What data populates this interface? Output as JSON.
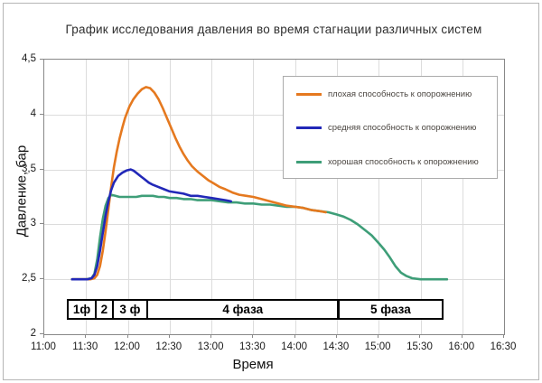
{
  "title": "График исследования давления во время стагнации различных систем",
  "chart_data": {
    "type": "line",
    "title": "График исследования давления во время стагнации различных систем",
    "xlabel": "Время",
    "ylabel": "Давление, бар",
    "grid": true,
    "legend_position": "upper right",
    "xlim_minutes_from_11_00": [
      0,
      330
    ],
    "ylim": [
      2,
      4.5
    ],
    "x_ticks": [
      {
        "t": 0,
        "label": "11:00"
      },
      {
        "t": 30,
        "label": "11:30"
      },
      {
        "t": 60,
        "label": "12:00"
      },
      {
        "t": 90,
        "label": "12:30"
      },
      {
        "t": 120,
        "label": "13:00"
      },
      {
        "t": 150,
        "label": "13:30"
      },
      {
        "t": 180,
        "label": "14:00"
      },
      {
        "t": 210,
        "label": "14:30"
      },
      {
        "t": 240,
        "label": "15:00"
      },
      {
        "t": 270,
        "label": "15:30"
      },
      {
        "t": 300,
        "label": "16:00"
      },
      {
        "t": 330,
        "label": "16:30"
      }
    ],
    "y_ticks": [
      {
        "v": 2,
        "label": "2"
      },
      {
        "v": 2.5,
        "label": "2,5"
      },
      {
        "v": 3,
        "label": "3"
      },
      {
        "v": 3.5,
        "label": "3,5"
      },
      {
        "v": 4,
        "label": "4"
      },
      {
        "v": 4.5,
        "label": "4,5"
      }
    ],
    "series": [
      {
        "key": "poor",
        "name": "плохая способность к опорожнению",
        "color": "#E5791F",
        "points": [
          [
            20,
            2.5
          ],
          [
            33,
            2.5
          ],
          [
            36,
            2.51
          ],
          [
            38,
            2.54
          ],
          [
            40,
            2.62
          ],
          [
            42,
            2.76
          ],
          [
            44,
            2.94
          ],
          [
            46,
            3.14
          ],
          [
            48,
            3.34
          ],
          [
            50,
            3.52
          ],
          [
            52,
            3.66
          ],
          [
            54,
            3.78
          ],
          [
            56,
            3.88
          ],
          [
            58,
            3.97
          ],
          [
            61,
            4.07
          ],
          [
            64,
            4.14
          ],
          [
            67,
            4.19
          ],
          [
            70,
            4.23
          ],
          [
            73,
            4.25
          ],
          [
            76,
            4.24
          ],
          [
            79,
            4.2
          ],
          [
            82,
            4.14
          ],
          [
            85,
            4.06
          ],
          [
            88,
            3.97
          ],
          [
            91,
            3.88
          ],
          [
            94,
            3.79
          ],
          [
            97,
            3.71
          ],
          [
            100,
            3.64
          ],
          [
            103,
            3.58
          ],
          [
            106,
            3.53
          ],
          [
            110,
            3.48
          ],
          [
            114,
            3.44
          ],
          [
            118,
            3.4
          ],
          [
            122,
            3.37
          ],
          [
            126,
            3.34
          ],
          [
            130,
            3.32
          ],
          [
            135,
            3.29
          ],
          [
            140,
            3.27
          ],
          [
            145,
            3.26
          ],
          [
            150,
            3.25
          ],
          [
            156,
            3.23
          ],
          [
            162,
            3.21
          ],
          [
            168,
            3.19
          ],
          [
            174,
            3.17
          ],
          [
            180,
            3.16
          ],
          [
            186,
            3.15
          ],
          [
            192,
            3.13
          ],
          [
            198,
            3.12
          ],
          [
            202,
            3.11
          ]
        ]
      },
      {
        "key": "medium",
        "name": "средняя способность к опорожнению",
        "color": "#2228B8",
        "points": [
          [
            20,
            2.5
          ],
          [
            31,
            2.5
          ],
          [
            34,
            2.51
          ],
          [
            36,
            2.54
          ],
          [
            38,
            2.62
          ],
          [
            40,
            2.76
          ],
          [
            42,
            2.92
          ],
          [
            44,
            3.08
          ],
          [
            46,
            3.21
          ],
          [
            48,
            3.31
          ],
          [
            50,
            3.38
          ],
          [
            53,
            3.44
          ],
          [
            56,
            3.47
          ],
          [
            59,
            3.49
          ],
          [
            62,
            3.5
          ],
          [
            64,
            3.49
          ],
          [
            66,
            3.47
          ],
          [
            69,
            3.44
          ],
          [
            72,
            3.41
          ],
          [
            75,
            3.38
          ],
          [
            78,
            3.36
          ],
          [
            82,
            3.34
          ],
          [
            86,
            3.32
          ],
          [
            90,
            3.3
          ],
          [
            95,
            3.29
          ],
          [
            100,
            3.28
          ],
          [
            105,
            3.26
          ],
          [
            110,
            3.26
          ],
          [
            115,
            3.25
          ],
          [
            120,
            3.24
          ],
          [
            125,
            3.23
          ],
          [
            130,
            3.22
          ],
          [
            134,
            3.21
          ]
        ]
      },
      {
        "key": "good",
        "name": "хорошая способность к опорожнению",
        "color": "#3E9E78",
        "points": [
          [
            20,
            2.5
          ],
          [
            30,
            2.5
          ],
          [
            34,
            2.51
          ],
          [
            36,
            2.55
          ],
          [
            38,
            2.68
          ],
          [
            40,
            2.88
          ],
          [
            42,
            3.05
          ],
          [
            44,
            3.17
          ],
          [
            46,
            3.24
          ],
          [
            48,
            3.27
          ],
          [
            51,
            3.26
          ],
          [
            54,
            3.25
          ],
          [
            58,
            3.25
          ],
          [
            62,
            3.25
          ],
          [
            66,
            3.25
          ],
          [
            70,
            3.26
          ],
          [
            74,
            3.26
          ],
          [
            78,
            3.26
          ],
          [
            82,
            3.25
          ],
          [
            86,
            3.25
          ],
          [
            90,
            3.24
          ],
          [
            95,
            3.24
          ],
          [
            100,
            3.23
          ],
          [
            105,
            3.23
          ],
          [
            110,
            3.22
          ],
          [
            115,
            3.22
          ],
          [
            120,
            3.22
          ],
          [
            126,
            3.21
          ],
          [
            132,
            3.2
          ],
          [
            138,
            3.2
          ],
          [
            144,
            3.19
          ],
          [
            150,
            3.19
          ],
          [
            156,
            3.18
          ],
          [
            162,
            3.18
          ],
          [
            168,
            3.17
          ],
          [
            174,
            3.16
          ],
          [
            180,
            3.16
          ],
          [
            186,
            3.15
          ],
          [
            192,
            3.13
          ],
          [
            198,
            3.12
          ],
          [
            204,
            3.11
          ],
          [
            210,
            3.09
          ],
          [
            215,
            3.07
          ],
          [
            220,
            3.04
          ],
          [
            225,
            3.0
          ],
          [
            230,
            2.95
          ],
          [
            235,
            2.9
          ],
          [
            240,
            2.83
          ],
          [
            244,
            2.77
          ],
          [
            248,
            2.7
          ],
          [
            252,
            2.62
          ],
          [
            256,
            2.56
          ],
          [
            260,
            2.53
          ],
          [
            264,
            2.51
          ],
          [
            270,
            2.5
          ],
          [
            278,
            2.5
          ],
          [
            289,
            2.5
          ]
        ]
      }
    ],
    "phases": [
      {
        "label": "1ф",
        "start": 17,
        "end": 37
      },
      {
        "label": "2",
        "start": 37,
        "end": 49
      },
      {
        "label": "3 ф",
        "start": 49,
        "end": 74
      },
      {
        "label": "4 фаза",
        "start": 74,
        "end": 211
      },
      {
        "label": "5 фаза",
        "start": 211,
        "end": 286
      }
    ]
  }
}
